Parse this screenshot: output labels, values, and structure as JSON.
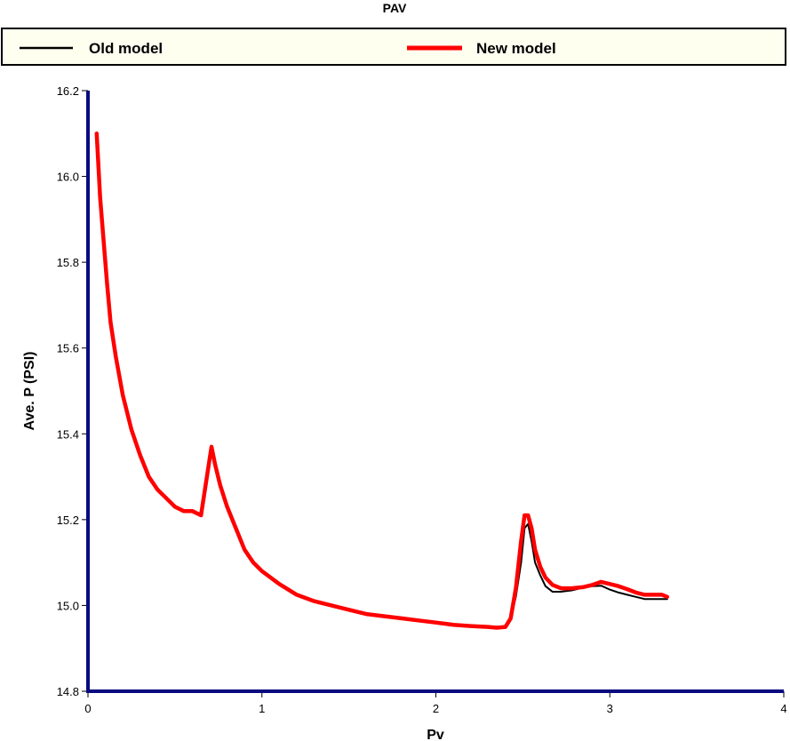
{
  "chart_data": {
    "type": "line",
    "title": "PAV",
    "xlabel": "Pv",
    "ylabel": "Ave. P (PSI)",
    "xlim": [
      0,
      4
    ],
    "ylim": [
      14.8,
      16.2
    ],
    "xticks": [
      0,
      1,
      2,
      3,
      4
    ],
    "yticks": [
      14.8,
      15.0,
      15.2,
      15.4,
      15.6,
      15.8,
      16.0,
      16.2
    ],
    "ytick_labels": [
      "14.8",
      "15.0",
      "15.2",
      "15.4",
      "15.6",
      "15.8",
      "16.0",
      "16.2"
    ],
    "grid": false,
    "legend_position": "top",
    "series": [
      {
        "name": "Old model",
        "color": "#000000",
        "x": [
          0.05,
          0.07,
          0.09,
          0.11,
          0.13,
          0.16,
          0.2,
          0.25,
          0.3,
          0.35,
          0.4,
          0.45,
          0.5,
          0.55,
          0.6,
          0.65,
          0.68,
          0.71,
          0.73,
          0.76,
          0.8,
          0.85,
          0.9,
          0.95,
          1.0,
          1.1,
          1.2,
          1.3,
          1.4,
          1.5,
          1.6,
          1.7,
          1.8,
          1.9,
          2.0,
          2.1,
          2.2,
          2.3,
          2.35,
          2.4,
          2.43,
          2.46,
          2.49,
          2.51,
          2.53,
          2.55,
          2.57,
          2.6,
          2.63,
          2.67,
          2.72,
          2.78,
          2.85,
          2.9,
          2.95,
          3.0,
          3.05,
          3.1,
          3.15,
          3.2,
          3.25,
          3.3,
          3.33
        ],
        "y": [
          16.1,
          15.95,
          15.85,
          15.75,
          15.66,
          15.58,
          15.49,
          15.41,
          15.35,
          15.3,
          15.27,
          15.25,
          15.23,
          15.22,
          15.22,
          15.21,
          15.29,
          15.37,
          15.33,
          15.28,
          15.23,
          15.18,
          15.13,
          15.1,
          15.08,
          15.05,
          15.025,
          15.01,
          15.0,
          14.99,
          14.98,
          14.975,
          14.97,
          14.965,
          14.96,
          14.955,
          14.952,
          14.95,
          14.948,
          14.95,
          14.97,
          15.02,
          15.1,
          15.18,
          15.19,
          15.15,
          15.1,
          15.07,
          15.045,
          15.032,
          15.032,
          15.035,
          15.042,
          15.045,
          15.046,
          15.037,
          15.03,
          15.025,
          15.02,
          15.015,
          15.015,
          15.015,
          15.015
        ]
      },
      {
        "name": "New model",
        "color": "#ff0000",
        "x": [
          0.05,
          0.07,
          0.09,
          0.11,
          0.13,
          0.16,
          0.2,
          0.25,
          0.3,
          0.35,
          0.4,
          0.45,
          0.5,
          0.55,
          0.6,
          0.65,
          0.68,
          0.71,
          0.73,
          0.76,
          0.8,
          0.85,
          0.9,
          0.95,
          1.0,
          1.1,
          1.2,
          1.3,
          1.4,
          1.5,
          1.6,
          1.7,
          1.8,
          1.9,
          2.0,
          2.1,
          2.2,
          2.3,
          2.35,
          2.4,
          2.43,
          2.46,
          2.49,
          2.51,
          2.53,
          2.55,
          2.57,
          2.6,
          2.63,
          2.67,
          2.72,
          2.78,
          2.85,
          2.9,
          2.95,
          3.0,
          3.05,
          3.1,
          3.15,
          3.2,
          3.25,
          3.3,
          3.33
        ],
        "y": [
          16.1,
          15.95,
          15.85,
          15.75,
          15.66,
          15.58,
          15.49,
          15.41,
          15.35,
          15.3,
          15.27,
          15.25,
          15.23,
          15.22,
          15.22,
          15.21,
          15.29,
          15.37,
          15.33,
          15.28,
          15.23,
          15.18,
          15.13,
          15.1,
          15.08,
          15.05,
          15.025,
          15.01,
          15.0,
          14.99,
          14.98,
          14.975,
          14.97,
          14.965,
          14.96,
          14.955,
          14.952,
          14.95,
          14.948,
          14.95,
          14.97,
          15.04,
          15.15,
          15.21,
          15.21,
          15.18,
          15.13,
          15.09,
          15.065,
          15.048,
          15.04,
          15.04,
          15.043,
          15.048,
          15.055,
          15.05,
          15.045,
          15.038,
          15.03,
          15.025,
          15.025,
          15.025,
          15.02
        ]
      }
    ]
  }
}
